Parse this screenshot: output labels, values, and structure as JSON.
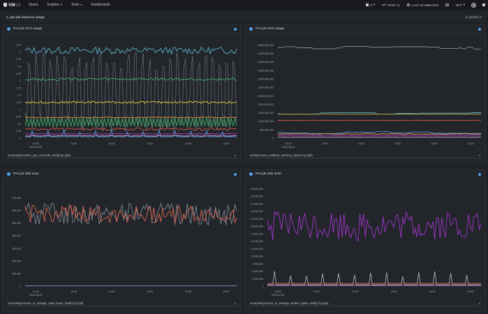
{
  "topbar": {
    "brand": "VM",
    "brand_suffix": "UI",
    "nav": [
      {
        "label": "Query",
        "caret": ""
      },
      {
        "label": "Explore",
        "caret": "▾"
      },
      {
        "label": "Tools",
        "caret": "▾"
      },
      {
        "label": "Dashboards",
        "caret": ""
      }
    ],
    "tenant_value": "0",
    "tenant_caret": "▾",
    "step_label": "STEP 1s",
    "time_range_label": "LAST 30 MINUTES",
    "refresh_label": "OFF",
    "refresh_caret": "▾"
  },
  "section": {
    "title": "1. per-job resource usage",
    "count_label": "(4 panels)",
    "toggle": "˄"
  },
  "colors": {
    "accent": "#4ea3f1",
    "background": "#1e2125",
    "panel": "#22262b"
  },
  "panels": [
    {
      "title": "Per-job CPU usage",
      "query": "sum(rate(process_cpu_seconds_total)) by (job)",
      "chart_data": {
        "type": "line",
        "title": "Per-job CPU usage",
        "ylim": [
          0,
          3.3
        ],
        "yticks": [
          "0",
          "0.25",
          "0.5",
          "0.75",
          "1",
          "1.25",
          "1.5",
          "1.75",
          "2",
          "2.25",
          "2.5",
          "2.75",
          "3",
          "3.25"
        ],
        "xticks": [
          "14:05",
          "14:10",
          "14:15",
          "14:20",
          "14:25",
          "14:30"
        ],
        "xdate": "2024-04-25",
        "series": [
          {
            "name": "cyan",
            "color": "#5fb3c9",
            "base": 3.05,
            "amp": 0.12,
            "kind": "noise"
          },
          {
            "name": "gray",
            "color": "#7d8590",
            "base": 1.6,
            "amp": 1.4,
            "kind": "square"
          },
          {
            "name": "green",
            "color": "#4caf72",
            "base": 2.05,
            "amp": 0.05,
            "kind": "noise"
          },
          {
            "name": "yellow",
            "color": "#e0d33a",
            "base": 1.25,
            "amp": 0.04,
            "kind": "noise"
          },
          {
            "name": "orange",
            "color": "#e59440",
            "base": 0.72,
            "amp": 0.02,
            "kind": "noise"
          },
          {
            "name": "green2",
            "color": "#3fae6a",
            "base": 0.55,
            "amp": 0.17,
            "kind": "zigzag"
          },
          {
            "name": "red",
            "color": "#d9574a",
            "base": 0.32,
            "amp": 0.05,
            "kind": "noise"
          },
          {
            "name": "blue-spikes",
            "color": "#4aa0d8",
            "base": 0.05,
            "amp": 0.25,
            "kind": "spikes"
          },
          {
            "name": "purple",
            "color": "#b03fc4",
            "base": 0.15,
            "amp": 0.01,
            "kind": "noise"
          },
          {
            "name": "pink",
            "color": "#d49ad8",
            "base": 0.08,
            "amp": 0.01,
            "kind": "noise"
          }
        ]
      }
    },
    {
      "title": "Per-job RSS usage",
      "query": "sum(process_resident_memory_bytes) by (job)",
      "chart_data": {
        "type": "line",
        "title": "Per-job RSS usage",
        "ylim": [
          0,
          5600000000
        ],
        "yticks": [
          "0",
          "500,000,000",
          "1,000,000,000",
          "1,500,000,000",
          "2,000,000,000",
          "2,500,000,000",
          "3,000,000,000",
          "3,500,000,000",
          "4,000,000,000",
          "4,500,000,000",
          "5,000,000,000",
          "5,500,000,000"
        ],
        "xticks": [
          "14:05",
          "14:10",
          "14:15",
          "14:20",
          "14:25",
          "14:30"
        ],
        "xdate": "2024-04-25",
        "series": [
          {
            "name": "gray",
            "color": "#8a9098",
            "base": 5350000000,
            "amp": 100000000,
            "kind": "step"
          },
          {
            "name": "cyan",
            "color": "#5fb3c9",
            "base": 1470000000,
            "amp": 60000000,
            "kind": "step"
          },
          {
            "name": "olive",
            "color": "#b3a640",
            "base": 1420000000,
            "amp": 10000000,
            "kind": "noise"
          },
          {
            "name": "red",
            "color": "#d9574a",
            "base": 1050000000,
            "amp": 10000000,
            "kind": "noise"
          },
          {
            "name": "cyan2",
            "color": "#4aa0d8",
            "base": 330000000,
            "amp": 60000000,
            "kind": "step"
          },
          {
            "name": "orange",
            "color": "#e59440",
            "base": 250000000,
            "amp": 20000000,
            "kind": "noise"
          },
          {
            "name": "purple",
            "color": "#b03fc4",
            "base": 170000000,
            "amp": 20000000,
            "kind": "noise"
          },
          {
            "name": "pink",
            "color": "#d49ad8",
            "base": 60000000,
            "amp": 5000000,
            "kind": "noise"
          }
        ]
      }
    },
    {
      "title": "Per-job disk read",
      "query": "sum(rate(process_io_storage_read_bytes_total)) by (job)",
      "chart_data": {
        "type": "line",
        "title": "Per-job disk read",
        "ylim": [
          0,
          730000
        ],
        "yticks": [
          "0",
          "100,000",
          "200,000",
          "300,000",
          "400,000",
          "500,000",
          "600,000",
          "700,000"
        ],
        "xticks": [
          "14:05",
          "14:10",
          "14:15",
          "14:20",
          "14:25",
          "14:30"
        ],
        "xdate": "2024-04-25",
        "series": [
          {
            "name": "gray",
            "color": "#7d8590",
            "base": 570000,
            "amp": 90000,
            "kind": "noise"
          },
          {
            "name": "red",
            "color": "#d9654f",
            "base": 570000,
            "amp": 70000,
            "kind": "noise"
          },
          {
            "name": "lavender",
            "color": "#9b90d8",
            "base": 1500,
            "amp": 0,
            "kind": "noise"
          }
        ]
      }
    },
    {
      "title": "Per-job disk write",
      "query": "sum(rate(process_io_storage_written_bytes_total)) by (job)",
      "chart_data": {
        "type": "line",
        "title": "Per-job disk write",
        "ylim": [
          0,
          33500000
        ],
        "yticks": [
          "0",
          "2,500,000",
          "5,000,000",
          "7,500,000",
          "10,000,000",
          "12,500,000",
          "15,000,000",
          "17,500,000",
          "20,000,000",
          "22,500,000",
          "25,000,000",
          "27,500,000",
          "30,000,000",
          "32,500,000"
        ],
        "xticks": [
          "14:05",
          "14:10",
          "14:15",
          "14:20",
          "14:25",
          "14:30"
        ],
        "xdate": "2024-04-25",
        "series": [
          {
            "name": "purple",
            "color": "#a234c9",
            "base": 20000000,
            "amp": 5000000,
            "kind": "noise"
          },
          {
            "name": "gray",
            "color": "#a8adb3",
            "base": 500000,
            "amp": 4500000,
            "kind": "spikes"
          },
          {
            "name": "red",
            "color": "#d9574a",
            "base": 900000,
            "amp": 50000,
            "kind": "noise"
          },
          {
            "name": "pink",
            "color": "#d49ad8",
            "base": 200000,
            "amp": 0,
            "kind": "noise"
          }
        ]
      }
    }
  ]
}
